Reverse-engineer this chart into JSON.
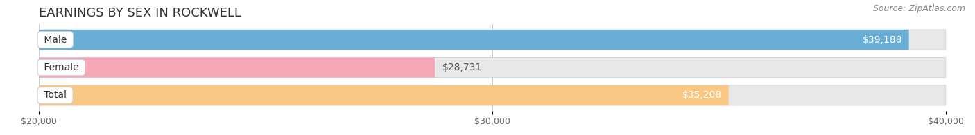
{
  "title": "EARNINGS BY SEX IN ROCKWELL",
  "source": "Source: ZipAtlas.com",
  "categories": [
    "Male",
    "Female",
    "Total"
  ],
  "values": [
    39188,
    28731,
    35208
  ],
  "x_min": 20000,
  "x_max": 40000,
  "bar_colors": [
    "#6aaed6",
    "#f4a8b8",
    "#f9c784"
  ],
  "bar_bg_color": "#e8e8e8",
  "bar_height": 0.72,
  "tick_labels": [
    "$20,000",
    "$30,000",
    "$40,000"
  ],
  "tick_values": [
    20000,
    30000,
    40000
  ],
  "title_fontsize": 13,
  "source_fontsize": 9,
  "bar_label_fontsize": 10,
  "category_fontsize": 10,
  "tick_fontsize": 9,
  "value_label_inside": [
    true,
    false,
    true
  ],
  "value_label_colors_inside": [
    "white",
    "#888888",
    "white"
  ]
}
